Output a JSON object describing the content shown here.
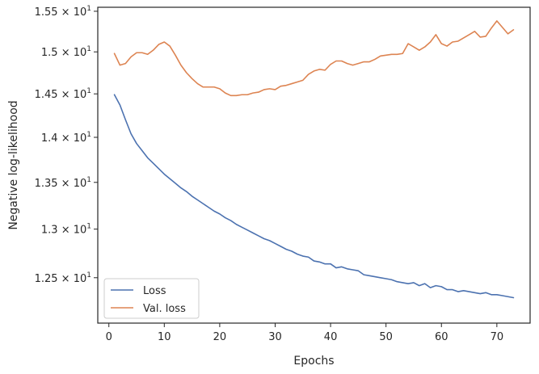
{
  "chart_data": {
    "type": "line",
    "title": "",
    "xlabel": "Epochs",
    "ylabel": "Negative log-likelihood",
    "xlim": [
      -2,
      76
    ],
    "ylim": [
      12.05,
      15.55
    ],
    "yscale": "log",
    "grid": false,
    "legend_position": "lower-left",
    "x_ticks": [
      0,
      10,
      20,
      30,
      40,
      50,
      60,
      70
    ],
    "x_tick_labels": [
      "0",
      "10",
      "20",
      "30",
      "40",
      "50",
      "60",
      "70"
    ],
    "y_ticks": [
      12.5,
      13.0,
      13.5,
      14.0,
      14.5,
      15.0,
      15.5
    ],
    "y_tick_labels": [
      {
        "mantissa": "1.25",
        "base": "10",
        "exp": "1"
      },
      {
        "mantissa": "1.3",
        "base": "10",
        "exp": "1"
      },
      {
        "mantissa": "1.35",
        "base": "10",
        "exp": "1"
      },
      {
        "mantissa": "1.4",
        "base": "10",
        "exp": "1"
      },
      {
        "mantissa": "1.45",
        "base": "10",
        "exp": "1"
      },
      {
        "mantissa": "1.5",
        "base": "10",
        "exp": "1"
      },
      {
        "mantissa": "1.55",
        "base": "10",
        "exp": "1"
      }
    ],
    "x": [
      1,
      2,
      3,
      4,
      5,
      6,
      7,
      8,
      9,
      10,
      11,
      12,
      13,
      14,
      15,
      16,
      17,
      18,
      19,
      20,
      21,
      22,
      23,
      24,
      25,
      26,
      27,
      28,
      29,
      30,
      31,
      32,
      33,
      34,
      35,
      36,
      37,
      38,
      39,
      40,
      41,
      42,
      43,
      44,
      45,
      46,
      47,
      48,
      49,
      50,
      51,
      52,
      53,
      54,
      55,
      56,
      57,
      58,
      59,
      60,
      61,
      62,
      63,
      64,
      65,
      66,
      67,
      68,
      69,
      70,
      71,
      72,
      73
    ],
    "series": [
      {
        "name": "Loss",
        "color": "#4c72b0",
        "values": [
          14.49,
          14.37,
          14.2,
          14.04,
          13.93,
          13.85,
          13.77,
          13.71,
          13.65,
          13.59,
          13.54,
          13.49,
          13.44,
          13.4,
          13.35,
          13.31,
          13.27,
          13.23,
          13.19,
          13.16,
          13.12,
          13.09,
          13.05,
          13.02,
          12.99,
          12.96,
          12.93,
          12.9,
          12.88,
          12.85,
          12.82,
          12.79,
          12.77,
          12.74,
          12.72,
          12.71,
          12.67,
          12.66,
          12.64,
          12.64,
          12.6,
          12.61,
          12.59,
          12.58,
          12.57,
          12.53,
          12.52,
          12.51,
          12.5,
          12.49,
          12.48,
          12.46,
          12.45,
          12.44,
          12.45,
          12.42,
          12.44,
          12.4,
          12.42,
          12.41,
          12.38,
          12.38,
          12.36,
          12.37,
          12.36,
          12.35,
          12.34,
          12.35,
          12.33,
          12.33,
          12.32,
          12.31,
          12.3
        ]
      },
      {
        "name": "Val. loss",
        "color": "#dd8452",
        "values": [
          14.98,
          14.84,
          14.86,
          14.94,
          14.99,
          14.99,
          14.97,
          15.02,
          15.09,
          15.12,
          15.07,
          14.96,
          14.84,
          14.75,
          14.68,
          14.62,
          14.58,
          14.58,
          14.58,
          14.56,
          14.51,
          14.48,
          14.48,
          14.49,
          14.49,
          14.51,
          14.52,
          14.55,
          14.56,
          14.55,
          14.59,
          14.6,
          14.62,
          14.64,
          14.66,
          14.73,
          14.77,
          14.79,
          14.78,
          14.85,
          14.89,
          14.89,
          14.86,
          14.84,
          14.86,
          14.88,
          14.88,
          14.91,
          14.95,
          14.96,
          14.97,
          14.97,
          14.98,
          15.1,
          15.06,
          15.02,
          15.06,
          15.12,
          15.21,
          15.1,
          15.07,
          15.12,
          15.13,
          15.17,
          15.21,
          15.25,
          15.18,
          15.19,
          15.29,
          15.38,
          15.3,
          15.22,
          15.27
        ]
      }
    ]
  }
}
